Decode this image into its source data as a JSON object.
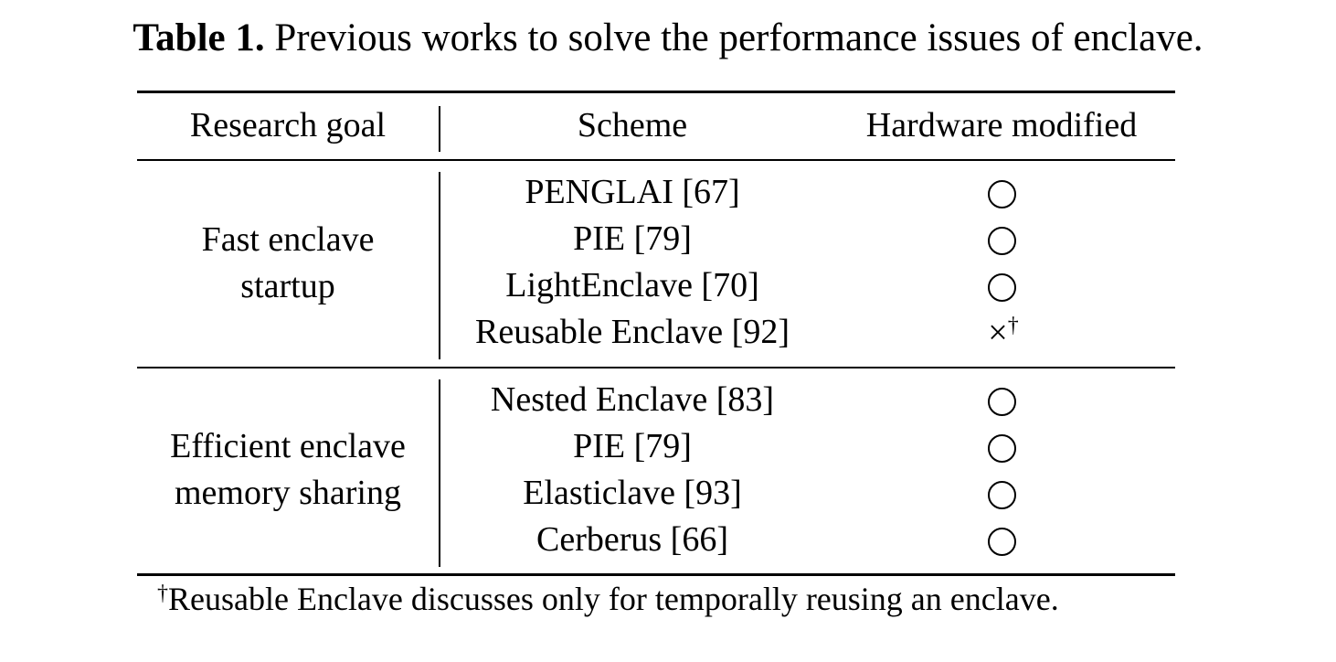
{
  "caption": {
    "label": "Table 1.",
    "text": "Previous works to solve the performance issues of enclave."
  },
  "table": {
    "headers": {
      "research_goal": "Research goal",
      "scheme": "Scheme",
      "hardware_modified": "Hardware modified"
    },
    "groups": [
      {
        "goal_lines": [
          "Fast enclave",
          "startup"
        ],
        "rows": [
          {
            "scheme": "PENGLAI [67]",
            "hardware_modified": "circle",
            "mark": ""
          },
          {
            "scheme": "PIE [79]",
            "hardware_modified": "circle",
            "mark": ""
          },
          {
            "scheme": "LightEnclave [70]",
            "hardware_modified": "circle",
            "mark": ""
          },
          {
            "scheme": "Reusable Enclave [92]",
            "hardware_modified": "cross",
            "mark": "×",
            "dagger": "†"
          }
        ]
      },
      {
        "goal_lines": [
          "Efficient enclave",
          "memory sharing"
        ],
        "rows": [
          {
            "scheme": "Nested Enclave [83]",
            "hardware_modified": "circle",
            "mark": ""
          },
          {
            "scheme": "PIE [79]",
            "hardware_modified": "circle",
            "mark": ""
          },
          {
            "scheme": "Elasticlave [93]",
            "hardware_modified": "circle",
            "mark": ""
          },
          {
            "scheme": "Cerberus [66]",
            "hardware_modified": "circle",
            "mark": ""
          }
        ]
      }
    ],
    "footnote": {
      "dagger": "†",
      "text": "Reusable Enclave discusses only for temporally reusing an enclave."
    }
  }
}
